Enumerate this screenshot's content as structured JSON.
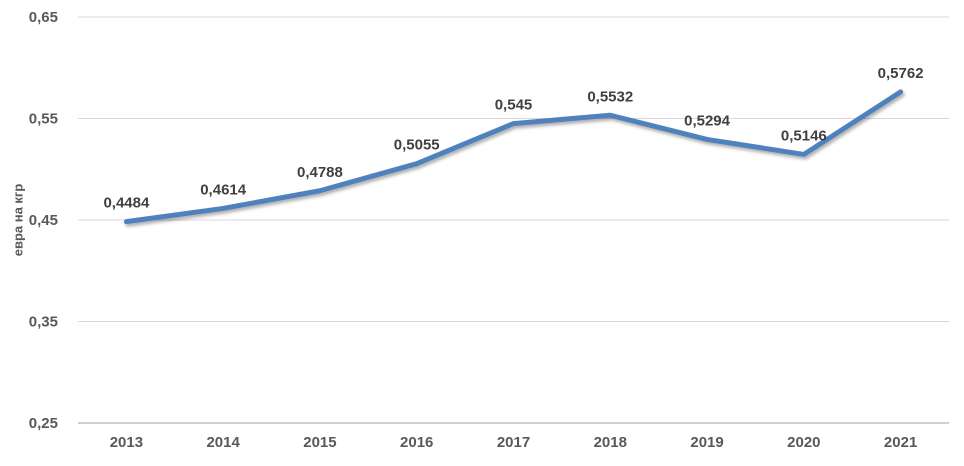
{
  "colors": {
    "line": "#4F81BD",
    "grid": "#D9D9D9",
    "axis_line": "#BFBFBF",
    "tick_label": "#595959",
    "data_label": "#404040",
    "background": "#FFFFFF"
  },
  "chart_data": {
    "type": "line",
    "title": "",
    "xlabel": "",
    "ylabel": "евра на кгр",
    "categories": [
      "2013",
      "2014",
      "2015",
      "2016",
      "2017",
      "2018",
      "2019",
      "2020",
      "2021"
    ],
    "series": [
      {
        "name": "евра на кгр",
        "values": [
          0.4484,
          0.4614,
          0.4788,
          0.5055,
          0.545,
          0.5532,
          0.5294,
          0.5146,
          0.5762
        ],
        "point_labels": [
          "0,4484",
          "0,4614",
          "0,4788",
          "0,5055",
          "0,545",
          "0,5532",
          "0,5294",
          "0,5146",
          "0,5762"
        ]
      }
    ],
    "ylim": [
      0.25,
      0.65
    ],
    "ytick_step": 0.1,
    "ytick_labels": [
      "0,25",
      "0,35",
      "0,45",
      "0,55",
      "0,65"
    ],
    "grid": true,
    "legend": false,
    "decimal_separator": ","
  }
}
